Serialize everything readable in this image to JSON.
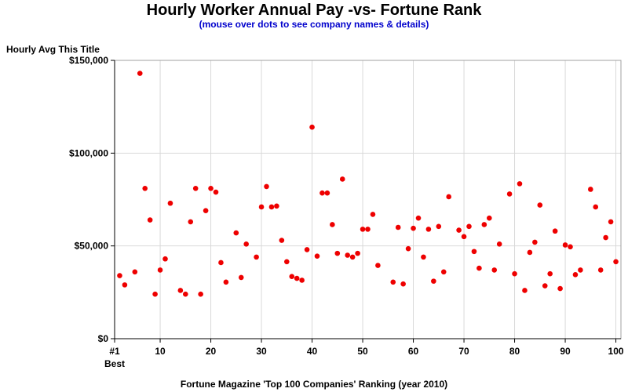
{
  "chart_data": {
    "type": "scatter",
    "title": "Hourly Worker Annual Pay -vs- Fortune Rank",
    "subtitle": "(mouse over dots to see company names & details)",
    "ylabel": "Hourly Avg This Title",
    "xlabel": "Fortune Magazine 'Top 100 Companies' Ranking (year 2010)",
    "xlim": [
      1,
      101
    ],
    "ylim": [
      0,
      150000
    ],
    "x_ticks": [
      {
        "value": 1,
        "label": "#1",
        "sublabel": "Best"
      },
      {
        "value": 10,
        "label": "10"
      },
      {
        "value": 20,
        "label": "20"
      },
      {
        "value": 30,
        "label": "30"
      },
      {
        "value": 40,
        "label": "40"
      },
      {
        "value": 50,
        "label": "50"
      },
      {
        "value": 60,
        "label": "60"
      },
      {
        "value": 70,
        "label": "70"
      },
      {
        "value": 80,
        "label": "80"
      },
      {
        "value": 90,
        "label": "90"
      },
      {
        "value": 100,
        "label": "100"
      }
    ],
    "y_ticks": [
      {
        "value": 0,
        "label": "$0"
      },
      {
        "value": 50000,
        "label": "$50,000"
      },
      {
        "value": 100000,
        "label": "$100,000"
      },
      {
        "value": 150000,
        "label": "$150,000"
      }
    ],
    "grid": true,
    "marker_color": "#ee0000",
    "points": [
      {
        "x": 2,
        "y": 34000
      },
      {
        "x": 3,
        "y": 29000
      },
      {
        "x": 5,
        "y": 36000
      },
      {
        "x": 6,
        "y": 143000
      },
      {
        "x": 7,
        "y": 81000
      },
      {
        "x": 8,
        "y": 64000
      },
      {
        "x": 9,
        "y": 24000
      },
      {
        "x": 10,
        "y": 37000
      },
      {
        "x": 11,
        "y": 43000
      },
      {
        "x": 12,
        "y": 73000
      },
      {
        "x": 14,
        "y": 26000
      },
      {
        "x": 15,
        "y": 24000
      },
      {
        "x": 16,
        "y": 63000
      },
      {
        "x": 17,
        "y": 81000
      },
      {
        "x": 18,
        "y": 24000
      },
      {
        "x": 19,
        "y": 69000
      },
      {
        "x": 20,
        "y": 81000
      },
      {
        "x": 21,
        "y": 79000
      },
      {
        "x": 22,
        "y": 41000
      },
      {
        "x": 23,
        "y": 30500
      },
      {
        "x": 25,
        "y": 57000
      },
      {
        "x": 26,
        "y": 33000
      },
      {
        "x": 27,
        "y": 51000
      },
      {
        "x": 29,
        "y": 44000
      },
      {
        "x": 30,
        "y": 71000
      },
      {
        "x": 31,
        "y": 82000
      },
      {
        "x": 32,
        "y": 71000
      },
      {
        "x": 33,
        "y": 71500
      },
      {
        "x": 34,
        "y": 53000
      },
      {
        "x": 35,
        "y": 41500
      },
      {
        "x": 36,
        "y": 33500
      },
      {
        "x": 37,
        "y": 32500
      },
      {
        "x": 38,
        "y": 31500
      },
      {
        "x": 39,
        "y": 48000
      },
      {
        "x": 40,
        "y": 114000
      },
      {
        "x": 41,
        "y": 44500
      },
      {
        "x": 42,
        "y": 78500
      },
      {
        "x": 43,
        "y": 78500
      },
      {
        "x": 44,
        "y": 61500
      },
      {
        "x": 45,
        "y": 46000
      },
      {
        "x": 46,
        "y": 86000
      },
      {
        "x": 47,
        "y": 45000
      },
      {
        "x": 48,
        "y": 44000
      },
      {
        "x": 49,
        "y": 46000
      },
      {
        "x": 50,
        "y": 59000
      },
      {
        "x": 51,
        "y": 59000
      },
      {
        "x": 52,
        "y": 67000
      },
      {
        "x": 53,
        "y": 39500
      },
      {
        "x": 56,
        "y": 30500
      },
      {
        "x": 57,
        "y": 60000
      },
      {
        "x": 58,
        "y": 29500
      },
      {
        "x": 59,
        "y": 48500
      },
      {
        "x": 60,
        "y": 59500
      },
      {
        "x": 61,
        "y": 65000
      },
      {
        "x": 62,
        "y": 44000
      },
      {
        "x": 63,
        "y": 59000
      },
      {
        "x": 64,
        "y": 31000
      },
      {
        "x": 65,
        "y": 60500
      },
      {
        "x": 66,
        "y": 36000
      },
      {
        "x": 67,
        "y": 76500
      },
      {
        "x": 69,
        "y": 58500
      },
      {
        "x": 70,
        "y": 55000
      },
      {
        "x": 71,
        "y": 60500
      },
      {
        "x": 72,
        "y": 47000
      },
      {
        "x": 73,
        "y": 38000
      },
      {
        "x": 74,
        "y": 61500
      },
      {
        "x": 75,
        "y": 65000
      },
      {
        "x": 76,
        "y": 37000
      },
      {
        "x": 77,
        "y": 51000
      },
      {
        "x": 79,
        "y": 78000
      },
      {
        "x": 80,
        "y": 35000
      },
      {
        "x": 81,
        "y": 83500
      },
      {
        "x": 82,
        "y": 26000
      },
      {
        "x": 83,
        "y": 46500
      },
      {
        "x": 84,
        "y": 52000
      },
      {
        "x": 85,
        "y": 72000
      },
      {
        "x": 86,
        "y": 28500
      },
      {
        "x": 87,
        "y": 35000
      },
      {
        "x": 88,
        "y": 58000
      },
      {
        "x": 89,
        "y": 27000
      },
      {
        "x": 90,
        "y": 50500
      },
      {
        "x": 91,
        "y": 49500
      },
      {
        "x": 92,
        "y": 34500
      },
      {
        "x": 93,
        "y": 37000
      },
      {
        "x": 95,
        "y": 80500
      },
      {
        "x": 96,
        "y": 71000
      },
      {
        "x": 97,
        "y": 37000
      },
      {
        "x": 98,
        "y": 54500
      },
      {
        "x": 99,
        "y": 63000
      },
      {
        "x": 100,
        "y": 41500
      }
    ]
  }
}
